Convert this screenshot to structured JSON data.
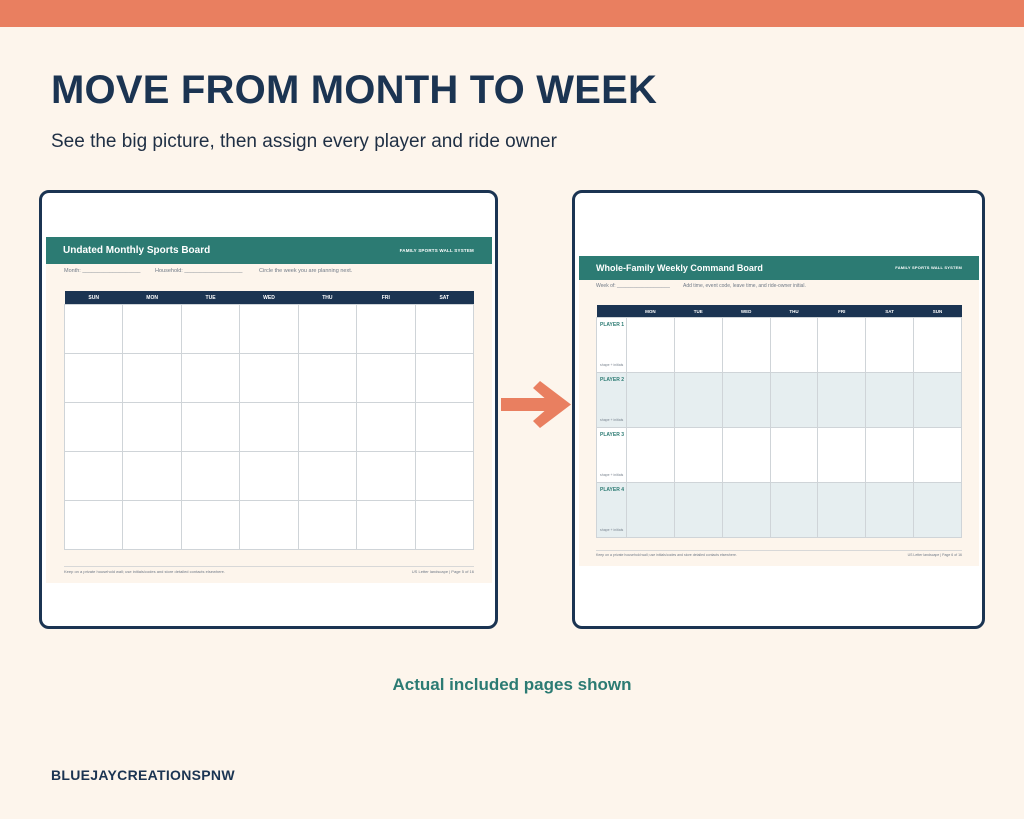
{
  "colors": {
    "accent": "#e97f60",
    "navy": "#1b3452",
    "teal": "#2c7b73",
    "background": "#fdf5ec"
  },
  "headline": "MOVE FROM MONTH TO WEEK",
  "subhead": "See the big picture, then assign every player and ride owner",
  "monthly": {
    "title": "Undated Monthly Sports Board",
    "system": "FAMILY SPORTS WALL SYSTEM",
    "month_label": "Month: ___________________",
    "household_label": "Household: ___________________",
    "instruction": "Circle the week you are planning next.",
    "days": [
      "SUN",
      "MON",
      "TUE",
      "WED",
      "THU",
      "FRI",
      "SAT"
    ],
    "week_rows": 5,
    "footer_left": "Keep on a private household wall; use initials/codes and store detailed contacts elsewhere.",
    "footer_right": "US Letter landscape | Page 5 of 16"
  },
  "weekly": {
    "title": "Whole-Family Weekly Command Board",
    "system": "FAMILY SPORTS WALL SYSTEM",
    "week_label": "Week of: ___________________",
    "instruction": "Add time, event code, leave time, and ride-owner initial.",
    "days": [
      "MON",
      "TUE",
      "WED",
      "THU",
      "FRI",
      "SAT",
      "SUN"
    ],
    "players": [
      {
        "label": "PLAYER 1",
        "sub": "shape + initials"
      },
      {
        "label": "PLAYER 2",
        "sub": "shape + initials"
      },
      {
        "label": "PLAYER 3",
        "sub": "shape + initials"
      },
      {
        "label": "PLAYER 4",
        "sub": "shape + initials"
      }
    ],
    "footer_left": "Keep on a private household wall; use initials/codes and store detailed contacts elsewhere.",
    "footer_right": "US Letter landscape | Page 6 of 16"
  },
  "arrow_icon": "right-arrow-icon",
  "caption": "Actual included pages shown",
  "brand": "BLUEJAYCREATIONSPNW"
}
